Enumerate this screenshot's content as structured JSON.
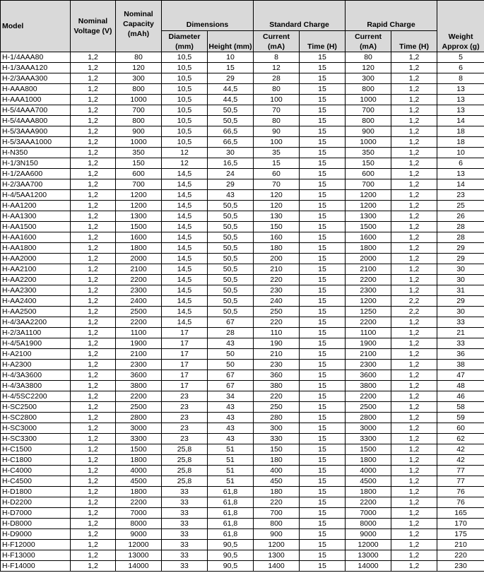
{
  "headers": {
    "model": "Model",
    "voltage": "Nominal Voltage (V)",
    "capacity": "Nominal Capacity (mAh)",
    "dimensions": "Dimensions",
    "diameter": "Diameter (mm)",
    "height": "Height (mm)",
    "standard_charge": "Standard Charge",
    "rapid_charge": "Rapid Charge",
    "current": "Current (mA)",
    "time": "Time (H)",
    "weight": "Weight Approx (g)"
  },
  "rows": [
    [
      "H-1/4AAA80",
      "1,2",
      "80",
      "10,5",
      "10",
      "8",
      "15",
      "80",
      "1,2",
      "5"
    ],
    [
      "H-1/3AAA120",
      "1,2",
      "120",
      "10,5",
      "15",
      "12",
      "15",
      "120",
      "1,2",
      "6"
    ],
    [
      "H-2/3AAA300",
      "1,2",
      "300",
      "10,5",
      "29",
      "28",
      "15",
      "300",
      "1,2",
      "8"
    ],
    [
      "H-AAA800",
      "1,2",
      "800",
      "10,5",
      "44,5",
      "80",
      "15",
      "800",
      "1,2",
      "13"
    ],
    [
      "H-AAA1000",
      "1,2",
      "1000",
      "10,5",
      "44,5",
      "100",
      "15",
      "1000",
      "1,2",
      "13"
    ],
    [
      "H-5/4AAA700",
      "1,2",
      "700",
      "10,5",
      "50,5",
      "70",
      "15",
      "700",
      "1,2",
      "13"
    ],
    [
      "H-5/4AAA800",
      "1,2",
      "800",
      "10,5",
      "50,5",
      "80",
      "15",
      "800",
      "1,2",
      "14"
    ],
    [
      "H-5/3AAA900",
      "1,2",
      "900",
      "10,5",
      "66,5",
      "90",
      "15",
      "900",
      "1,2",
      "18"
    ],
    [
      "H-5/3AAA1000",
      "1,2",
      "1000",
      "10,5",
      "66,5",
      "100",
      "15",
      "1000",
      "1,2",
      "18"
    ],
    [
      "H-N350",
      "1,2",
      "350",
      "12",
      "30",
      "35",
      "15",
      "350",
      "1,2",
      "10"
    ],
    [
      "H-1/3N150",
      "1,2",
      "150",
      "12",
      "16,5",
      "15",
      "15",
      "150",
      "1,2",
      "6"
    ],
    [
      "H-1/2AA600",
      "1,2",
      "600",
      "14,5",
      "24",
      "60",
      "15",
      "600",
      "1,2",
      "13"
    ],
    [
      "H-2/3AA700",
      "1,2",
      "700",
      "14,5",
      "29",
      "70",
      "15",
      "700",
      "1,2",
      "14"
    ],
    [
      "H-4/5AA1200",
      "1,2",
      "1200",
      "14,5",
      "43",
      "120",
      "15",
      "1200",
      "1,2",
      "23"
    ],
    [
      "H-AA1200",
      "1,2",
      "1200",
      "14,5",
      "50,5",
      "120",
      "15",
      "1200",
      "1,2",
      "25"
    ],
    [
      "H-AA1300",
      "1,2",
      "1300",
      "14,5",
      "50,5",
      "130",
      "15",
      "1300",
      "1,2",
      "26"
    ],
    [
      "H-AA1500",
      "1,2",
      "1500",
      "14,5",
      "50,5",
      "150",
      "15",
      "1500",
      "1,2",
      "28"
    ],
    [
      "H-AA1600",
      "1,2",
      "1600",
      "14,5",
      "50,5",
      "160",
      "15",
      "1600",
      "1,2",
      "28"
    ],
    [
      "H-AA1800",
      "1,2",
      "1800",
      "14,5",
      "50,5",
      "180",
      "15",
      "1800",
      "1,2",
      "29"
    ],
    [
      "H-AA2000",
      "1,2",
      "2000",
      "14,5",
      "50,5",
      "200",
      "15",
      "2000",
      "1,2",
      "29"
    ],
    [
      "H-AA2100",
      "1,2",
      "2100",
      "14,5",
      "50,5",
      "210",
      "15",
      "2100",
      "1,2",
      "30"
    ],
    [
      "H-AA2200",
      "1,2",
      "2200",
      "14,5",
      "50,5",
      "220",
      "15",
      "2200",
      "1,2",
      "30"
    ],
    [
      "H-AA2300",
      "1,2",
      "2300",
      "14,5",
      "50,5",
      "230",
      "15",
      "2300",
      "1,2",
      "31"
    ],
    [
      "H-AA2400",
      "1,2",
      "2400",
      "14,5",
      "50,5",
      "240",
      "15",
      "1200",
      "2,2",
      "29"
    ],
    [
      "H-AA2500",
      "1,2",
      "2500",
      "14,5",
      "50,5",
      "250",
      "15",
      "1250",
      "2,2",
      "30"
    ],
    [
      "H-4/3AA2200",
      "1,2",
      "2200",
      "14,5",
      "67",
      "220",
      "15",
      "2200",
      "1,2",
      "33"
    ],
    [
      "H-2/3A1100",
      "1,2",
      "1100",
      "17",
      "28",
      "110",
      "15",
      "1100",
      "1,2",
      "21"
    ],
    [
      "H-4/5A1900",
      "1,2",
      "1900",
      "17",
      "43",
      "190",
      "15",
      "1900",
      "1,2",
      "33"
    ],
    [
      "H-A2100",
      "1,2",
      "2100",
      "17",
      "50",
      "210",
      "15",
      "2100",
      "1,2",
      "36"
    ],
    [
      "H-A2300",
      "1,2",
      "2300",
      "17",
      "50",
      "230",
      "15",
      "2300",
      "1,2",
      "38"
    ],
    [
      "H-4/3A3600",
      "1,2",
      "3600",
      "17",
      "67",
      "360",
      "15",
      "3600",
      "1,2",
      "47"
    ],
    [
      "H-4/3A3800",
      "1,2",
      "3800",
      "17",
      "67",
      "380",
      "15",
      "3800",
      "1,2",
      "48"
    ],
    [
      "H-4/5SC2200",
      "1,2",
      "2200",
      "23",
      "34",
      "220",
      "15",
      "2200",
      "1,2",
      "46"
    ],
    [
      "H-SC2500",
      "1,2",
      "2500",
      "23",
      "43",
      "250",
      "15",
      "2500",
      "1,2",
      "58"
    ],
    [
      "H-SC2800",
      "1,2",
      "2800",
      "23",
      "43",
      "280",
      "15",
      "2800",
      "1,2",
      "59"
    ],
    [
      "H-SC3000",
      "1,2",
      "3000",
      "23",
      "43",
      "300",
      "15",
      "3000",
      "1,2",
      "60"
    ],
    [
      "H-SC3300",
      "1,2",
      "3300",
      "23",
      "43",
      "330",
      "15",
      "3300",
      "1,2",
      "62"
    ],
    [
      "H-C1500",
      "1,2",
      "1500",
      "25,8",
      "51",
      "150",
      "15",
      "1500",
      "1,2",
      "42"
    ],
    [
      "H-C1800",
      "1,2",
      "1800",
      "25,8",
      "51",
      "180",
      "15",
      "1800",
      "1,2",
      "42"
    ],
    [
      "H-C4000",
      "1,2",
      "4000",
      "25,8",
      "51",
      "400",
      "15",
      "4000",
      "1,2",
      "77"
    ],
    [
      "H-C4500",
      "1,2",
      "4500",
      "25,8",
      "51",
      "450",
      "15",
      "4500",
      "1,2",
      "77"
    ],
    [
      "H-D1800",
      "1,2",
      "1800",
      "33",
      "61,8",
      "180",
      "15",
      "1800",
      "1,2",
      "76"
    ],
    [
      "H-D2200",
      "1,2",
      "2200",
      "33",
      "61,8",
      "220",
      "15",
      "2200",
      "1,2",
      "76"
    ],
    [
      "H-D7000",
      "1,2",
      "7000",
      "33",
      "61,8",
      "700",
      "15",
      "7000",
      "1,2",
      "165"
    ],
    [
      "H-D8000",
      "1,2",
      "8000",
      "33",
      "61,8",
      "800",
      "15",
      "8000",
      "1,2",
      "170"
    ],
    [
      "H-D9000",
      "1,2",
      "9000",
      "33",
      "61,8",
      "900",
      "15",
      "9000",
      "1,2",
      "175"
    ],
    [
      "H-F12000",
      "1,2",
      "12000",
      "33",
      "90,5",
      "1200",
      "15",
      "12000",
      "1,2",
      "210"
    ],
    [
      "H-F13000",
      "1,2",
      "13000",
      "33",
      "90,5",
      "1300",
      "15",
      "13000",
      "1,2",
      "220"
    ],
    [
      "H-F14000",
      "1,2",
      "14000",
      "33",
      "90,5",
      "1400",
      "15",
      "14000",
      "1,2",
      "230"
    ]
  ]
}
